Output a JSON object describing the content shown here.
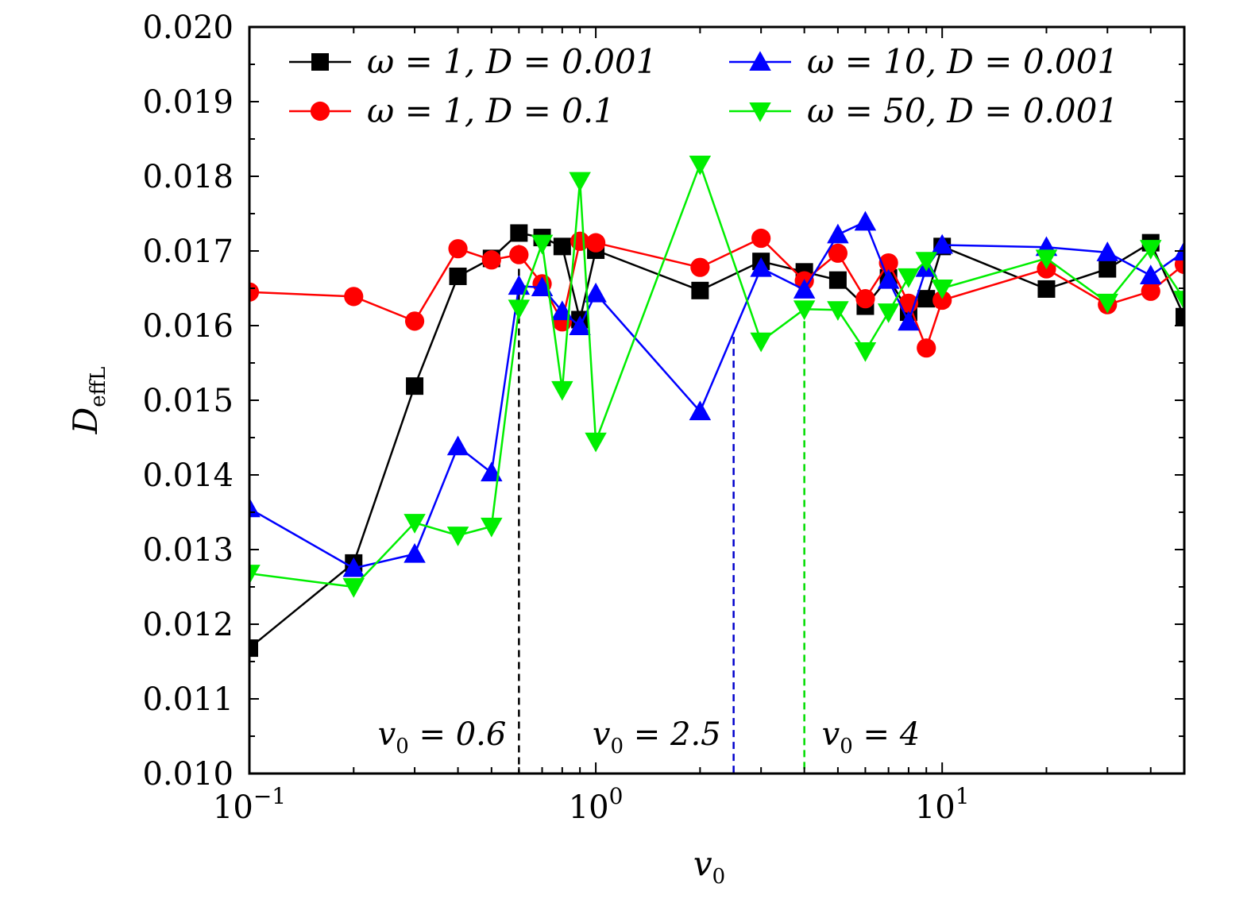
{
  "chart_data": {
    "type": "line",
    "x_scale": "log",
    "xlim": [
      0.1,
      50
    ],
    "ylim": [
      0.01,
      0.02
    ],
    "xlabel": "v",
    "xlabel_sub": "0",
    "ylabel": "D",
    "ylabel_sub": "effL",
    "y_ticks": [
      "0.010",
      "0.011",
      "0.012",
      "0.013",
      "0.014",
      "0.015",
      "0.016",
      "0.017",
      "0.018",
      "0.019",
      "0.020"
    ],
    "x_ticks": [
      {
        "value": 0.1,
        "base": "10",
        "exp": "−1"
      },
      {
        "value": 1,
        "base": "10",
        "exp": "0"
      },
      {
        "value": 10,
        "base": "10",
        "exp": "1"
      }
    ],
    "legend_position": "top",
    "series": [
      {
        "name": "ω = 1,  D = 0.001",
        "color": "#000000",
        "marker": "square",
        "x": [
          0.1,
          0.2,
          0.3,
          0.4,
          0.5,
          0.6,
          0.7,
          0.8,
          0.9,
          1,
          2,
          3,
          4,
          5,
          6,
          7,
          8,
          9,
          10,
          20,
          30,
          40,
          50
        ],
        "y": [
          0.01168,
          0.01282,
          0.01519,
          0.01666,
          0.0169,
          0.01724,
          0.01718,
          0.01706,
          0.01608,
          0.01701,
          0.01647,
          0.01686,
          0.01672,
          0.01661,
          0.01626,
          0.01664,
          0.01618,
          0.01636,
          0.01706,
          0.01649,
          0.01676,
          0.01711,
          0.01612
        ]
      },
      {
        "name": "ω = 1,  D = 0.1",
        "color": "#ff0000",
        "marker": "circle",
        "x": [
          0.1,
          0.2,
          0.3,
          0.4,
          0.5,
          0.6,
          0.7,
          0.8,
          0.9,
          1,
          2,
          3,
          4,
          5,
          6,
          7,
          8,
          9,
          10,
          20,
          30,
          40,
          50
        ],
        "y": [
          0.01645,
          0.01639,
          0.01606,
          0.01703,
          0.01688,
          0.01695,
          0.01656,
          0.01605,
          0.01713,
          0.01711,
          0.01678,
          0.01717,
          0.0166,
          0.01697,
          0.01636,
          0.01684,
          0.0163,
          0.0157,
          0.01634,
          0.01676,
          0.01628,
          0.01646,
          0.01682
        ]
      },
      {
        "name": "ω = 10,  D = 0.001",
        "color": "#0000ff",
        "marker": "triangle-up",
        "x": [
          0.1,
          0.2,
          0.3,
          0.4,
          0.5,
          0.6,
          0.7,
          0.8,
          0.9,
          1,
          2,
          3,
          4,
          5,
          6,
          7,
          8,
          9,
          10,
          20,
          30,
          40,
          50
        ],
        "y": [
          0.01355,
          0.01275,
          0.01294,
          0.01438,
          0.01403,
          0.01653,
          0.01651,
          0.01619,
          0.01599,
          0.01643,
          0.01485,
          0.01677,
          0.01648,
          0.01722,
          0.01739,
          0.01661,
          0.01605,
          0.01677,
          0.01708,
          0.01705,
          0.01698,
          0.01667,
          0.01699
        ]
      },
      {
        "name": "ω = 50,  D = 0.001",
        "color": "#00ee00",
        "marker": "triangle-down",
        "x": [
          0.1,
          0.2,
          0.3,
          0.4,
          0.5,
          0.6,
          0.7,
          0.8,
          0.9,
          1,
          2,
          3,
          4,
          5,
          6,
          7,
          8,
          9,
          10,
          20,
          30,
          40,
          50
        ],
        "y": [
          0.01268,
          0.0125,
          0.01336,
          0.01319,
          0.01331,
          0.01623,
          0.0171,
          0.01514,
          0.01794,
          0.01445,
          0.01816,
          0.01579,
          0.01622,
          0.01621,
          0.01566,
          0.01618,
          0.01665,
          0.01687,
          0.0165,
          0.0169,
          0.01631,
          0.01703,
          0.01635
        ]
      }
    ],
    "annotations": [
      {
        "name": "threshold-black",
        "x": 0.6,
        "color": "#000000",
        "label_main": "v",
        "label_sub": "0",
        "label_rest": " = 0.6"
      },
      {
        "name": "threshold-blue",
        "x": 2.5,
        "color": "#0000cc",
        "label_main": "v",
        "label_sub": "0",
        "label_rest": " = 2.5"
      },
      {
        "name": "threshold-green",
        "x": 4,
        "color": "#00dd00",
        "label_main": "v",
        "label_sub": "0",
        "label_rest": " = 4"
      }
    ]
  }
}
